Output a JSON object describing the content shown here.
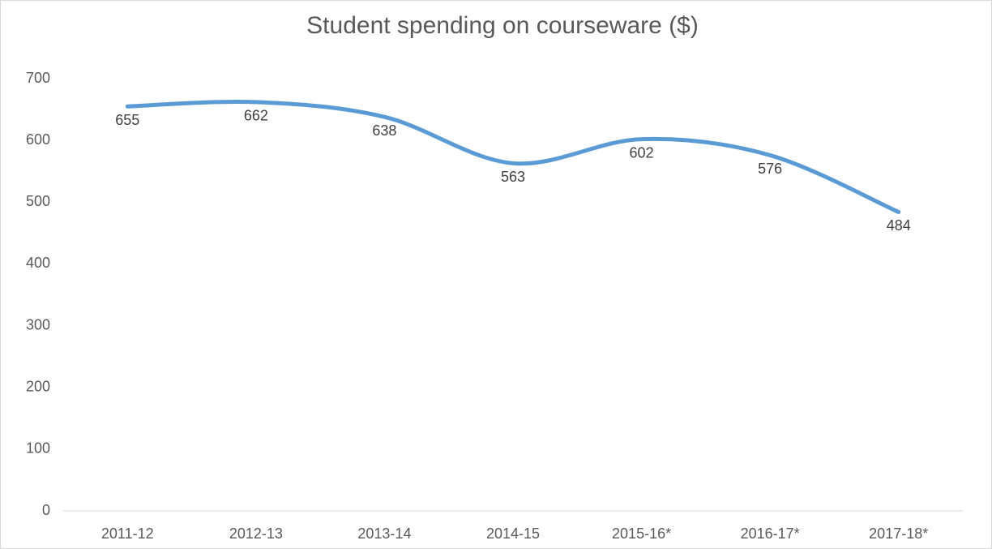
{
  "chart_data": {
    "type": "line",
    "title": "Student spending on courseware ($)",
    "categories": [
      "2011-12",
      "2012-13",
      "2013-14",
      "2014-15",
      "2015-16*",
      "2016-17*",
      "2017-18*"
    ],
    "values": [
      655,
      662,
      638,
      563,
      602,
      576,
      484
    ],
    "color": "#5b9bd5",
    "smooth": true,
    "ylim": [
      0,
      700
    ],
    "yticks": [
      0,
      100,
      200,
      300,
      400,
      500,
      600,
      700
    ],
    "grid": false
  }
}
